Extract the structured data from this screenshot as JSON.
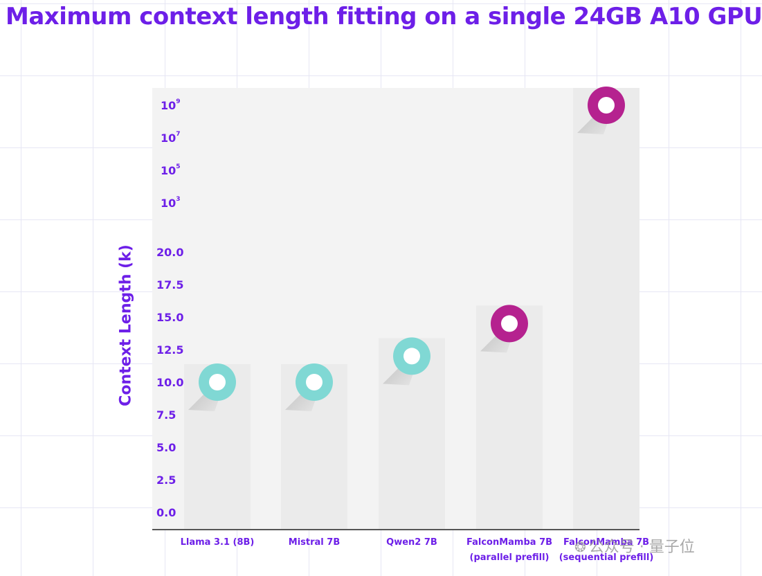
{
  "chart_data": {
    "type": "scatter",
    "title": "Maximum context length fitting on a single 24GB A10 GPU",
    "xlabel": "",
    "ylabel": "Context Length (k)",
    "categories": [
      "Llama 3.1 (8B)",
      "Mistral 7B",
      "Qwen2 7B",
      [
        "FalconMamba 7B",
        "(parallel prefill)"
      ],
      [
        "FalconMamba 7B",
        "(sequential prefill)"
      ]
    ],
    "values_k": [
      10.0,
      10.0,
      12.0,
      14.5,
      1000000000
    ],
    "ylim_linear": [
      0,
      20
    ],
    "linear_ticks": [
      "0.0",
      "2.5",
      "5.0",
      "7.5",
      "10.0",
      "12.5",
      "15.0",
      "17.5",
      "20.0"
    ],
    "log_ticks": [
      {
        "base": "10",
        "exp": "3"
      },
      {
        "base": "10",
        "exp": "5"
      },
      {
        "base": "10",
        "exp": "7"
      },
      {
        "base": "10",
        "exp": "9"
      }
    ],
    "marker_colors": [
      "#80d8d4",
      "#80d8d4",
      "#80d8d4",
      "#b5228f",
      "#b5228f"
    ],
    "background_bar_color": "#ebebeb",
    "plot_bg_color": "#f3f3f3",
    "axis_color": "#555555",
    "text_color": "#6d1fe8"
  },
  "watermark": {
    "icon": "wechat-icon",
    "text": "公众号 · 量子位"
  }
}
